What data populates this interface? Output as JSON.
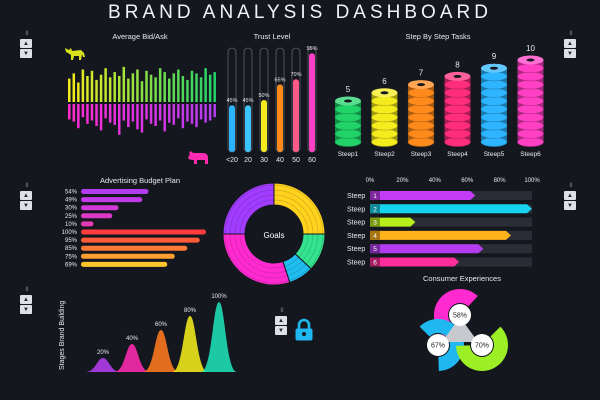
{
  "title": "BRAND ANALYSIS DASHBOARD",
  "controls": {
    "pager": "II",
    "up": "▲",
    "down": "▼"
  },
  "icons": {
    "bull": "bull-icon",
    "bear": "bear-icon",
    "lock": "lock-icon"
  },
  "chart_data": [
    {
      "type": "bar",
      "title": "Average Bid/Ask",
      "series": [
        {
          "values": [
            18,
            22,
            15,
            25,
            20,
            24,
            17,
            21,
            26,
            19,
            23,
            20,
            27,
            18,
            22,
            25,
            16,
            24,
            21,
            19,
            26,
            23,
            18,
            22,
            25,
            20,
            17,
            24,
            22,
            19,
            26,
            21,
            23
          ]
        },
        {
          "values": [
            14,
            16,
            22,
            12,
            18,
            15,
            20,
            24,
            13,
            17,
            19,
            28,
            15,
            21,
            16,
            23,
            26,
            14,
            18,
            20,
            15,
            25,
            17,
            19,
            13,
            22,
            16,
            18,
            21,
            14,
            17,
            15,
            12
          ]
        }
      ]
    },
    {
      "type": "bar",
      "title": "Trust Level",
      "categories": [
        "<20",
        "20",
        "30",
        "40",
        "50",
        "60"
      ],
      "values": [
        45,
        45,
        50,
        65,
        70,
        95
      ],
      "value_labels": [
        "45%",
        "45%",
        "50%",
        "65%",
        "70%",
        "95%"
      ],
      "ylim": [
        0,
        100
      ]
    },
    {
      "type": "bar",
      "title": "Step By Step Tasks",
      "categories": [
        "Steep1",
        "Steep2",
        "Steep3",
        "Steep4",
        "Steep5",
        "Steep6"
      ],
      "values": [
        5,
        6,
        7,
        8,
        9,
        10
      ],
      "colors": [
        "#22d36a",
        "#f4ec1c",
        "#ff8a1c",
        "#ff2d7a",
        "#2db5ff",
        "#ff3fc4"
      ]
    },
    {
      "type": "bar",
      "title": "Advertising Budget Plan",
      "categories": [
        "54%",
        "49%",
        "30%",
        "25%",
        "10%",
        "100%",
        "95%",
        "85%",
        "75%",
        "69%"
      ],
      "values": [
        54,
        49,
        30,
        25,
        10,
        100,
        95,
        85,
        75,
        69
      ],
      "colors": [
        "#b43cf0",
        "#c33be8",
        "#d03ad8",
        "#dc3ac6",
        "#e63ab2",
        "#ff3d3d",
        "#ff5a3a",
        "#ff7a36",
        "#ff9f30",
        "#ffc52c"
      ]
    },
    {
      "type": "pie",
      "title": "Goals",
      "values": [
        25,
        12,
        8,
        30,
        25
      ],
      "colors": [
        "#ffd21e",
        "#34e38f",
        "#1fbdf0",
        "#ff2bd0",
        "#a23cff"
      ]
    },
    {
      "type": "bar",
      "categories": [
        "Steep",
        "Steep",
        "Steep",
        "Steep",
        "Steep",
        "Steep"
      ],
      "markers": [
        "1",
        "2",
        "3",
        "4",
        "5",
        "6"
      ],
      "values": [
        65,
        100,
        28,
        87,
        70,
        55
      ],
      "colors": [
        "#c33cf5",
        "#16d4ee",
        "#b8ef1a",
        "#ffb21a",
        "#b43cf0",
        "#ff2d9b"
      ],
      "xticks": [
        "0%",
        "20%",
        "40%",
        "60%",
        "80%",
        "100%"
      ],
      "xlim": [
        0,
        100
      ]
    },
    {
      "type": "area",
      "ylabel": "Stages Brand Building",
      "values": [
        20,
        40,
        60,
        80,
        100
      ],
      "value_labels": [
        "20%",
        "40%",
        "60%",
        "80%",
        "100%"
      ],
      "colors": [
        "#b43cf0",
        "#ff2bb0",
        "#ff7a20",
        "#f4ec1c",
        "#1fe3b8"
      ]
    },
    {
      "type": "pie",
      "title": "Consumer Experiences",
      "values": [
        58,
        67,
        70
      ],
      "value_labels": [
        "58%",
        "67%",
        "70%"
      ],
      "colors": [
        "#ff2bd0",
        "#1fb8f0",
        "#9cef24"
      ]
    }
  ]
}
